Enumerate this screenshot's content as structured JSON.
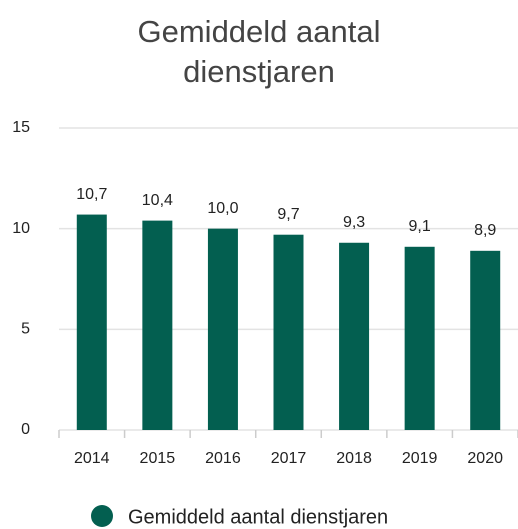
{
  "chart_data": {
    "type": "bar",
    "title": "Gemiddeld aantal dienstjaren",
    "categories": [
      "2014",
      "2015",
      "2016",
      "2017",
      "2018",
      "2019",
      "2020"
    ],
    "series": [
      {
        "name": "Gemiddeld aantal dienstjaren",
        "color": "#035f50",
        "values": [
          10.7,
          10.4,
          10.0,
          9.7,
          9.3,
          9.1,
          8.9
        ],
        "value_labels": [
          "10,7",
          "10,4",
          "10,0",
          "9,7",
          "9,3",
          "9,1",
          "8,9"
        ]
      }
    ],
    "ylim": [
      0,
      15
    ],
    "yticks": [
      0,
      5,
      10,
      15
    ],
    "grid": true
  }
}
